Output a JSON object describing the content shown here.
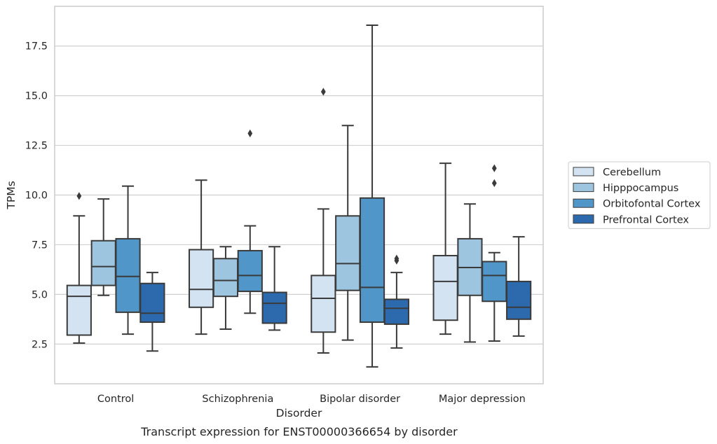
{
  "chart_data": {
    "type": "box",
    "caption": "Transcript expression for ENST00000366654 by disorder",
    "xlabel": "Disorder",
    "ylabel": "TPMs",
    "ylim": [
      0.5,
      19.5
    ],
    "yticks": [
      2.5,
      5.0,
      7.5,
      10.0,
      12.5,
      15.0,
      17.5
    ],
    "ytick_labels": [
      "2.5",
      "5.0",
      "7.5",
      "10.0",
      "12.5",
      "15.0",
      "17.5"
    ],
    "grid": "horizontal",
    "legend_position": "right",
    "categories": [
      "Control",
      "Schizophrenia",
      "Bipolar disorder",
      "Major depression"
    ],
    "series": [
      {
        "name": "Cerebellum",
        "color": "#d4e3f2",
        "boxes": [
          {
            "whislo": 2.55,
            "q1": 2.95,
            "med": 4.9,
            "q3": 5.45,
            "whishi": 8.95,
            "fliers": [
              9.95
            ]
          },
          {
            "whislo": 3.0,
            "q1": 4.35,
            "med": 5.25,
            "q3": 7.25,
            "whishi": 10.75,
            "fliers": []
          },
          {
            "whislo": 2.05,
            "q1": 3.1,
            "med": 4.8,
            "q3": 5.95,
            "whishi": 9.3,
            "fliers": [
              15.2
            ]
          },
          {
            "whislo": 3.0,
            "q1": 3.7,
            "med": 5.65,
            "q3": 6.95,
            "whishi": 11.6,
            "fliers": []
          }
        ]
      },
      {
        "name": "Hipppocampus",
        "color": "#9dc5df",
        "boxes": [
          {
            "whislo": 4.95,
            "q1": 5.45,
            "med": 6.4,
            "q3": 7.7,
            "whishi": 9.8,
            "fliers": []
          },
          {
            "whislo": 3.25,
            "q1": 4.9,
            "med": 5.7,
            "q3": 6.8,
            "whishi": 7.4,
            "fliers": []
          },
          {
            "whislo": 2.7,
            "q1": 5.2,
            "med": 6.55,
            "q3": 8.95,
            "whishi": 13.5,
            "fliers": []
          },
          {
            "whislo": 2.6,
            "q1": 4.95,
            "med": 6.35,
            "q3": 7.8,
            "whishi": 9.55,
            "fliers": []
          }
        ]
      },
      {
        "name": "Orbitofontal Cortex",
        "color": "#5096c8",
        "boxes": [
          {
            "whislo": 3.0,
            "q1": 4.1,
            "med": 5.9,
            "q3": 7.8,
            "whishi": 10.45,
            "fliers": []
          },
          {
            "whislo": 4.05,
            "q1": 5.15,
            "med": 5.95,
            "q3": 7.2,
            "whishi": 8.45,
            "fliers": [
              13.1
            ]
          },
          {
            "whislo": 1.35,
            "q1": 3.6,
            "med": 5.35,
            "q3": 9.85,
            "whishi": 18.55,
            "fliers": []
          },
          {
            "whislo": 2.65,
            "q1": 4.65,
            "med": 5.95,
            "q3": 6.65,
            "whishi": 7.1,
            "fliers": [
              10.6,
              11.35
            ]
          }
        ]
      },
      {
        "name": "Prefrontal Cortex",
        "color": "#2d6aad",
        "boxes": [
          {
            "whislo": 2.15,
            "q1": 3.6,
            "med": 4.05,
            "q3": 5.55,
            "whishi": 6.1,
            "fliers": []
          },
          {
            "whislo": 3.2,
            "q1": 3.55,
            "med": 4.55,
            "q3": 5.1,
            "whishi": 7.4,
            "fliers": []
          },
          {
            "whislo": 2.3,
            "q1": 3.5,
            "med": 4.3,
            "q3": 4.75,
            "whishi": 6.1,
            "fliers": [
              6.7,
              6.8
            ]
          },
          {
            "whislo": 2.9,
            "q1": 3.75,
            "med": 4.35,
            "q3": 5.65,
            "whishi": 7.9,
            "fliers": []
          }
        ]
      }
    ]
  }
}
